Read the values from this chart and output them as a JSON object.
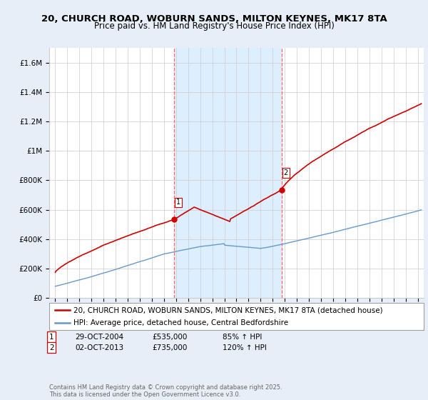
{
  "title": "20, CHURCH ROAD, WOBURN SANDS, MILTON KEYNES, MK17 8TA",
  "subtitle": "Price paid vs. HM Land Registry's House Price Index (HPI)",
  "ylabel_ticks": [
    "£0",
    "£200K",
    "£400K",
    "£600K",
    "£800K",
    "£1M",
    "£1.2M",
    "£1.4M",
    "£1.6M"
  ],
  "ylabel_values": [
    0,
    200000,
    400000,
    600000,
    800000,
    1000000,
    1200000,
    1400000,
    1600000
  ],
  "ylim": [
    0,
    1700000
  ],
  "xlim_start": 1994.5,
  "xlim_end": 2025.5,
  "house_color": "#cc0000",
  "hpi_color": "#6699cc",
  "shading_color": "#ddeeff",
  "marker1_year": 2004.83,
  "marker1_price": 535000,
  "marker1_label": "1",
  "marker2_year": 2013.75,
  "marker2_price": 735000,
  "marker2_label": "2",
  "legend_house": "20, CHURCH ROAD, WOBURN SANDS, MILTON KEYNES, MK17 8TA (detached house)",
  "legend_hpi": "HPI: Average price, detached house, Central Bedfordshire",
  "annotation1_date": "29-OCT-2004",
  "annotation1_price": "£535,000",
  "annotation1_hpi": "85% ↑ HPI",
  "annotation2_date": "02-OCT-2013",
  "annotation2_price": "£735,000",
  "annotation2_hpi": "120% ↑ HPI",
  "footer": "Contains HM Land Registry data © Crown copyright and database right 2025.\nThis data is licensed under the Open Government Licence v3.0.",
  "background_color": "#e8eef8",
  "plot_bg_color": "#ffffff",
  "grid_color": "#cccccc",
  "vline_color": "#ff6666",
  "title_fontsize": 9.5,
  "subtitle_fontsize": 8.5,
  "tick_fontsize": 7.5,
  "legend_fontsize": 7.5
}
